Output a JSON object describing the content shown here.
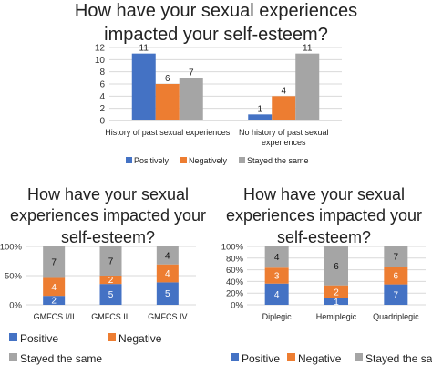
{
  "colors": {
    "positive": "#4472C4",
    "negative": "#ED7D31",
    "same": "#A5A5A5"
  },
  "chart_data": [
    {
      "type": "bar",
      "title_lines": [
        "How have your sexual experiences",
        "impacted your self-esteem?"
      ],
      "categories": [
        [
          "History of past sexual experiences"
        ],
        [
          "No history of past sexual",
          "experiences"
        ]
      ],
      "series": [
        {
          "name": "Positively",
          "values": [
            11,
            1
          ]
        },
        {
          "name": "Negatively",
          "values": [
            6,
            4
          ]
        },
        {
          "name": "Stayed the same",
          "values": [
            7,
            11
          ]
        }
      ],
      "ylim": [
        0,
        12
      ],
      "yticks": [
        "0",
        "2",
        "4",
        "6",
        "8",
        "10",
        "12"
      ],
      "legend": "bottom"
    },
    {
      "type": "bar",
      "stacked": "percent",
      "title_lines": [
        "How have your sexual",
        "experiences impacted your",
        "self-esteem?"
      ],
      "categories": [
        [
          "GMFCS I/II"
        ],
        [
          "GMFCS III"
        ],
        [
          "GMFCS IV"
        ]
      ],
      "series": [
        {
          "name": "Positive",
          "values": [
            2,
            5,
            5
          ]
        },
        {
          "name": "Negative",
          "values": [
            4,
            2,
            4
          ]
        },
        {
          "name": "Stayed the same",
          "values": [
            7,
            7,
            4
          ]
        }
      ],
      "ylim": [
        0,
        100
      ],
      "yticks": [
        "0%",
        "50%",
        "100%"
      ],
      "legend": "bottom"
    },
    {
      "type": "bar",
      "stacked": "percent",
      "title_lines": [
        "How have your sexual",
        "experiences impacted your",
        "self-esteem?"
      ],
      "categories": [
        [
          "Diplegic"
        ],
        [
          "Hemiplegic"
        ],
        [
          "Quadriplegic"
        ]
      ],
      "series": [
        {
          "name": "Positive",
          "values": [
            4,
            1,
            7
          ]
        },
        {
          "name": "Negative",
          "values": [
            3,
            2,
            6
          ]
        },
        {
          "name": "Stayed the same",
          "values": [
            4,
            6,
            7
          ]
        }
      ],
      "ylim": [
        0,
        100
      ],
      "yticks": [
        "0%",
        "20%",
        "40%",
        "60%",
        "80%",
        "100%"
      ],
      "legend": "bottom"
    }
  ]
}
